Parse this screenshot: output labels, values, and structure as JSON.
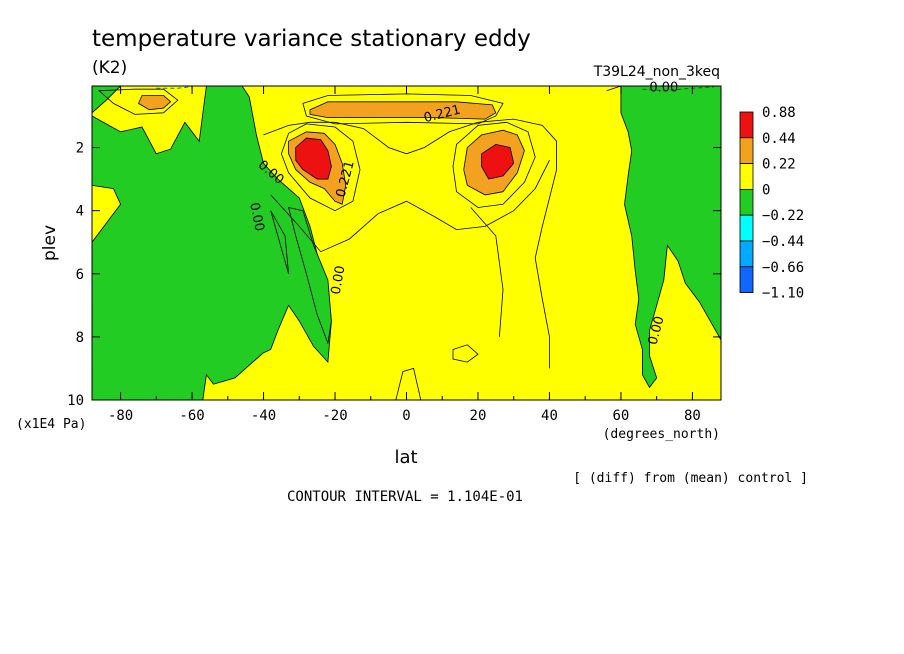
{
  "chart_data": {
    "type": "heatmap",
    "title": "temperature variance stationary eddy",
    "units": "(K2)",
    "run_label": "T39L24_non_3keq",
    "xlabel": "lat",
    "x_units": "(degrees_north)",
    "ylabel": "plev",
    "y_units": "(x1E4 Pa)",
    "xlim": [
      -88,
      88
    ],
    "ylim": [
      10,
      0.05
    ],
    "x_ticks": [
      -80,
      -60,
      -40,
      -20,
      0,
      20,
      40,
      60,
      80
    ],
    "y_ticks": [
      2,
      4,
      6,
      8,
      10
    ],
    "x_tick_labels": [
      "-80",
      "-60",
      "-40",
      "-20",
      "0",
      "20",
      "40",
      "60",
      "80"
    ],
    "y_tick_labels": [
      "2",
      "4",
      "6",
      "8",
      "10"
    ],
    "note": "[ (diff) from (mean) control ]",
    "contour_interval": "CONTOUR INTERVAL = 1.104E-01",
    "contour_labels": [
      "0.00",
      "0.221",
      "0.00",
      "0.00",
      "0.221",
      "0.00",
      "0.00",
      "0.00"
    ],
    "colorbar": {
      "labels": [
        "0.88",
        "0.44",
        "0.22",
        "0",
        "−0.22",
        "−0.44",
        "−0.66",
        "−1.10"
      ],
      "colors": [
        "#ee1111",
        "#f2a21f",
        "#ffff00",
        "#22cc22",
        "#00ffff",
        "#00aaff",
        "#1166ff"
      ]
    },
    "level_colors": {
      "very_high": "#ee1111",
      "high": "#f2a21f",
      "positive": "#ffff00",
      "negative": "#22cc22"
    },
    "regions": [
      {
        "level": "positive",
        "description": "background field",
        "polygon": [
          [
            -88,
            0.05
          ],
          [
            88,
            0.05
          ],
          [
            88,
            10
          ],
          [
            -88,
            10
          ]
        ]
      },
      {
        "level": "negative",
        "polygon": [
          [
            -88,
            1.0
          ],
          [
            -80,
            1.5
          ],
          [
            -74,
            1.35
          ],
          [
            -70,
            2.2
          ],
          [
            -66,
            2.05
          ],
          [
            -62,
            1.2
          ],
          [
            -58,
            1.8
          ],
          [
            -56,
            0.05
          ],
          [
            -46,
            0.05
          ],
          [
            -44,
            0.4
          ],
          [
            -42,
            1.6
          ],
          [
            -40,
            2.5
          ],
          [
            -36,
            3.0
          ],
          [
            -30,
            3.6
          ],
          [
            -27,
            4.5
          ],
          [
            -24,
            5.8
          ],
          [
            -22,
            6.5
          ],
          [
            -21,
            7.5
          ],
          [
            -22,
            8.8
          ],
          [
            -26,
            8.3
          ],
          [
            -30,
            7.5
          ],
          [
            -33,
            7.0
          ],
          [
            -36,
            7.8
          ],
          [
            -38,
            8.4
          ],
          [
            -40,
            8.5
          ],
          [
            -43,
            8.8
          ],
          [
            -48,
            9.3
          ],
          [
            -54,
            9.5
          ],
          [
            -56,
            9.2
          ],
          [
            -57,
            10
          ],
          [
            -88,
            10
          ],
          [
            -88,
            5.0
          ],
          [
            -82,
            4.1
          ],
          [
            -80,
            3.8
          ],
          [
            -82,
            3.3
          ],
          [
            -88,
            3.2
          ]
        ]
      },
      {
        "level": "negative",
        "polygon": [
          [
            -88,
            0.05
          ],
          [
            -80,
            0.05
          ],
          [
            -84,
            0.5
          ],
          [
            -88,
            0.9
          ]
        ]
      },
      {
        "level": "negative",
        "polygon": [
          [
            -33,
            3.9
          ],
          [
            -29,
            4.0
          ],
          [
            -26,
            5.1
          ],
          [
            -22,
            6.2
          ],
          [
            -21,
            7.5
          ],
          [
            -22,
            8.2
          ],
          [
            -25,
            7.3
          ],
          [
            -28,
            6.0
          ],
          [
            -31,
            4.8
          ]
        ]
      },
      {
        "level": "negative",
        "polygon": [
          [
            60,
            0.05
          ],
          [
            88,
            0.05
          ],
          [
            88,
            8.1
          ],
          [
            86,
            7.7
          ],
          [
            82,
            6.9
          ],
          [
            78,
            6.3
          ],
          [
            76,
            5.6
          ],
          [
            73,
            5.1
          ],
          [
            72,
            6.2
          ],
          [
            70,
            7.0
          ],
          [
            68,
            7.8
          ],
          [
            68,
            8.6
          ],
          [
            70,
            9.3
          ],
          [
            68,
            9.6
          ],
          [
            66,
            9.2
          ],
          [
            66,
            8.4
          ],
          [
            64,
            7.6
          ],
          [
            65,
            6.8
          ],
          [
            64,
            5.9
          ],
          [
            63,
            4.8
          ],
          [
            61,
            3.8
          ],
          [
            62,
            2.9
          ],
          [
            63,
            2.1
          ],
          [
            62,
            1.5
          ],
          [
            60,
            0.9
          ]
        ]
      },
      {
        "level": "high",
        "polygon": [
          [
            -74,
            0.35
          ],
          [
            -68,
            0.35
          ],
          [
            -66,
            0.55
          ],
          [
            -68,
            0.75
          ],
          [
            -72,
            0.8
          ],
          [
            -75,
            0.6
          ]
        ]
      },
      {
        "level": "high",
        "polygon": [
          [
            -33,
            1.8
          ],
          [
            -28,
            1.5
          ],
          [
            -23,
            1.55
          ],
          [
            -20,
            1.9
          ],
          [
            -18,
            2.5
          ],
          [
            -17,
            3.2
          ],
          [
            -18,
            3.8
          ],
          [
            -20,
            3.7
          ],
          [
            -23,
            3.3
          ],
          [
            -27,
            3.1
          ],
          [
            -31,
            2.7
          ],
          [
            -33,
            2.2
          ]
        ]
      },
      {
        "level": "high",
        "polygon": [
          [
            -27,
            0.8
          ],
          [
            -22,
            0.55
          ],
          [
            0,
            0.55
          ],
          [
            14,
            0.55
          ],
          [
            24,
            0.65
          ],
          [
            25,
            0.9
          ],
          [
            22,
            1.1
          ],
          [
            8,
            1.05
          ],
          [
            -8,
            1.05
          ],
          [
            -22,
            1.05
          ],
          [
            -27,
            0.95
          ]
        ]
      },
      {
        "level": "high",
        "polygon": [
          [
            17,
            2.0
          ],
          [
            21,
            1.6
          ],
          [
            27,
            1.45
          ],
          [
            31,
            1.6
          ],
          [
            33,
            2.1
          ],
          [
            31,
            2.8
          ],
          [
            27,
            3.4
          ],
          [
            22,
            3.5
          ],
          [
            17,
            3.2
          ],
          [
            16,
            2.7
          ]
        ]
      },
      {
        "level": "very_high",
        "polygon": [
          [
            -31,
            2.0
          ],
          [
            -28,
            1.7
          ],
          [
            -24,
            1.75
          ],
          [
            -22,
            2.1
          ],
          [
            -21,
            2.6
          ],
          [
            -22,
            3.0
          ],
          [
            -25,
            3.0
          ],
          [
            -29,
            2.7
          ],
          [
            -31,
            2.4
          ]
        ]
      },
      {
        "level": "very_high",
        "polygon": [
          [
            21,
            2.2
          ],
          [
            25,
            1.9
          ],
          [
            29,
            2.0
          ],
          [
            30,
            2.5
          ],
          [
            27,
            2.9
          ],
          [
            23,
            3.0
          ],
          [
            21,
            2.6
          ]
        ]
      }
    ],
    "contour_lines": [
      {
        "points": [
          [
            -29,
            0.6
          ],
          [
            -22,
            0.35
          ],
          [
            0,
            0.3
          ],
          [
            18,
            0.35
          ],
          [
            27,
            0.6
          ],
          [
            25,
            1.0
          ],
          [
            20,
            1.25
          ],
          [
            0,
            1.2
          ],
          [
            -20,
            1.25
          ],
          [
            -28,
            1.0
          ]
        ],
        "closed": true
      },
      {
        "points": [
          [
            -33,
            1.55
          ],
          [
            -28,
            1.25
          ],
          [
            -20,
            1.35
          ],
          [
            -15,
            1.8
          ],
          [
            -13,
            2.7
          ],
          [
            -15,
            3.7
          ],
          [
            -20,
            4.0
          ],
          [
            -27,
            3.6
          ],
          [
            -33,
            2.8
          ],
          [
            -35,
            2.2
          ]
        ],
        "closed": true
      },
      {
        "points": [
          [
            14,
            1.9
          ],
          [
            20,
            1.3
          ],
          [
            28,
            1.2
          ],
          [
            34,
            1.5
          ],
          [
            36,
            2.3
          ],
          [
            33,
            3.1
          ],
          [
            27,
            3.8
          ],
          [
            20,
            3.9
          ],
          [
            14,
            3.4
          ],
          [
            13,
            2.6
          ]
        ],
        "closed": true
      },
      {
        "points": [
          [
            -40,
            1.6
          ],
          [
            -33,
            1.3
          ],
          [
            -27,
            1.2
          ],
          [
            -20,
            1.2
          ],
          [
            -12,
            1.4
          ],
          [
            -5,
            2.0
          ],
          [
            0,
            2.2
          ],
          [
            5,
            2.0
          ],
          [
            12,
            1.5
          ],
          [
            20,
            1.2
          ],
          [
            30,
            1.1
          ],
          [
            38,
            1.3
          ],
          [
            42,
            1.8
          ],
          [
            42,
            2.7
          ],
          [
            40,
            3.6
          ],
          [
            38,
            4.5
          ],
          [
            36,
            5.5
          ],
          [
            38,
            6.8
          ],
          [
            40,
            8.0
          ],
          [
            40,
            9.0
          ]
        ],
        "closed": false
      },
      {
        "points": [
          [
            -38,
            3.5
          ],
          [
            -30,
            4.5
          ],
          [
            -24,
            5.3
          ],
          [
            -16,
            4.9
          ],
          [
            -8,
            4.1
          ],
          [
            0,
            3.7
          ],
          [
            8,
            4.2
          ],
          [
            14,
            4.6
          ],
          [
            22,
            4.5
          ],
          [
            30,
            4.0
          ],
          [
            36,
            3.3
          ],
          [
            40,
            2.4
          ]
        ],
        "closed": false
      },
      {
        "points": [
          [
            18,
            3.9
          ],
          [
            25,
            4.8
          ],
          [
            27,
            6.5
          ],
          [
            26,
            8.0
          ]
        ],
        "closed": false
      },
      {
        "points": [
          [
            -38,
            4.0
          ],
          [
            -35,
            5.2
          ],
          [
            -33,
            6.0
          ],
          [
            -34,
            4.8
          ]
        ],
        "closed": true
      },
      {
        "points": [
          [
            -86,
            0.2
          ],
          [
            -76,
            0.15
          ],
          [
            -68,
            0.15
          ],
          [
            -64,
            0.5
          ],
          [
            -68,
            0.9
          ],
          [
            -76,
            0.95
          ],
          [
            -82,
            0.6
          ]
        ],
        "closed": true
      },
      {
        "points": [
          [
            13,
            8.4
          ],
          [
            17,
            8.25
          ],
          [
            20,
            8.55
          ],
          [
            17,
            8.8
          ],
          [
            13,
            8.7
          ]
        ],
        "closed": true
      },
      {
        "points": [
          [
            -3,
            10
          ],
          [
            -1,
            9.1
          ],
          [
            2,
            9.0
          ],
          [
            4,
            10
          ]
        ],
        "closed": false
      },
      {
        "points": [
          [
            56,
            0.2
          ],
          [
            60,
            0.05
          ]
        ],
        "closed": false
      }
    ],
    "negative_dashed_lines": [
      {
        "points": [
          [
            -70,
            0.12
          ],
          [
            -64,
            0.12
          ],
          [
            -60,
            0.07
          ]
        ],
        "color": "#007a9a"
      },
      {
        "points": [
          [
            66,
            0.15
          ],
          [
            72,
            0.2
          ],
          [
            80,
            0.12
          ],
          [
            86,
            0.08
          ]
        ],
        "color": "#006a00"
      }
    ]
  }
}
